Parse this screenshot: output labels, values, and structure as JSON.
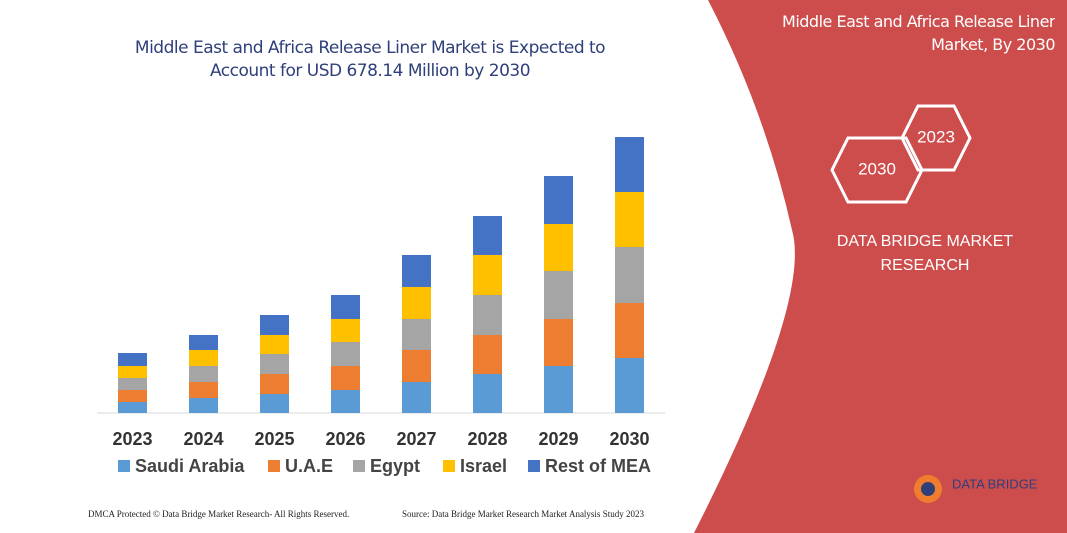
{
  "chart_data": {
    "type": "bar",
    "stacked": true,
    "title": "Middle East and Africa Release Liner Market is Expected to Account for USD 678.14 Million by 2030",
    "categories": [
      "2023",
      "2024",
      "2025",
      "2026",
      "2027",
      "2028",
      "2029",
      "2030"
    ],
    "series": [
      {
        "name": "Saudi Arabia",
        "color": "#5b9bd5",
        "values": [
          11,
          15,
          19,
          23,
          31,
          39,
          47,
          55
        ]
      },
      {
        "name": "U.A.E",
        "color": "#ed7d31",
        "values": [
          12,
          16,
          20,
          24,
          32,
          39,
          47,
          55
        ]
      },
      {
        "name": "Egypt",
        "color": "#a5a5a5",
        "values": [
          12,
          16,
          20,
          24,
          31,
          40,
          48,
          56
        ]
      },
      {
        "name": "Israel",
        "color": "#ffc000",
        "values": [
          12,
          16,
          19,
          23,
          32,
          40,
          47,
          55
        ]
      },
      {
        "name": "Rest of MEA",
        "color": "#4472c4",
        "values": [
          13,
          15,
          20,
          24,
          32,
          39,
          48,
          55
        ]
      }
    ]
  },
  "panel": {
    "heading": "Middle East and Africa Release Liner Market, By 2030",
    "hex_labels": [
      "2030",
      "2023"
    ],
    "company": "DATA BRIDGE MARKET RESEARCH"
  },
  "logo": "DATA BRIDGE",
  "footer": {
    "left": "DMCA Protected © Data Bridge Market Research- All Rights Reserved.",
    "right": "Source: Data Bridge Market Research  Market Analysis Study 2023"
  }
}
